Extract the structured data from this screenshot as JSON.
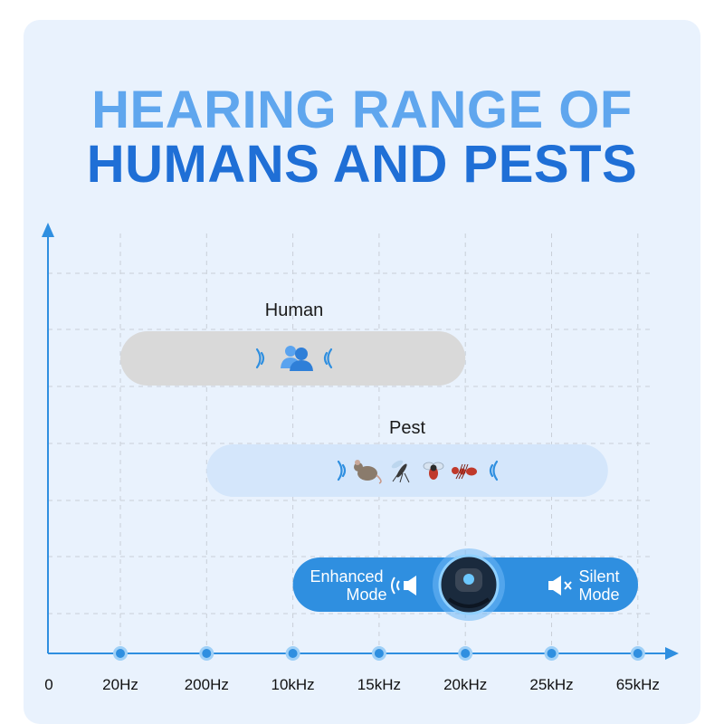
{
  "title": {
    "line1": "HEARING RANGE OF",
    "line2": "HUMANS AND PESTS"
  },
  "chart_data": {
    "type": "bar",
    "orientation": "horizontal",
    "grid": true,
    "origin_label": "0",
    "x_ticks": [
      "20Hz",
      "200Hz",
      "10kHz",
      "15kHz",
      "20kHz",
      "25kHz",
      "65kHz"
    ],
    "bars": [
      {
        "label": "Human",
        "start": "20Hz",
        "end": "20kHz",
        "color": "#d9d9d9",
        "icons": [
          "sound-waves",
          "people",
          "sound-waves"
        ]
      },
      {
        "label": "Pest",
        "start": "200Hz",
        "end": "65kHz",
        "color": "#d4e6fb",
        "icons": [
          "sound-waves",
          "rat",
          "mosquito",
          "fly",
          "ant",
          "sound-waves"
        ]
      }
    ],
    "device_bar": {
      "start": "10kHz",
      "end": "65kHz",
      "color": "#2f8fe0",
      "left_mode": {
        "line1": "Enhanced",
        "line2": "Mode",
        "icon": "speaker-on"
      },
      "right_mode": {
        "line1": "Silent",
        "line2": "Mode",
        "icon": "speaker-mute"
      }
    }
  },
  "colors": {
    "accent": "#2f8fe0",
    "axis": "#2f8fe0",
    "grid": "#c9cfd8"
  }
}
